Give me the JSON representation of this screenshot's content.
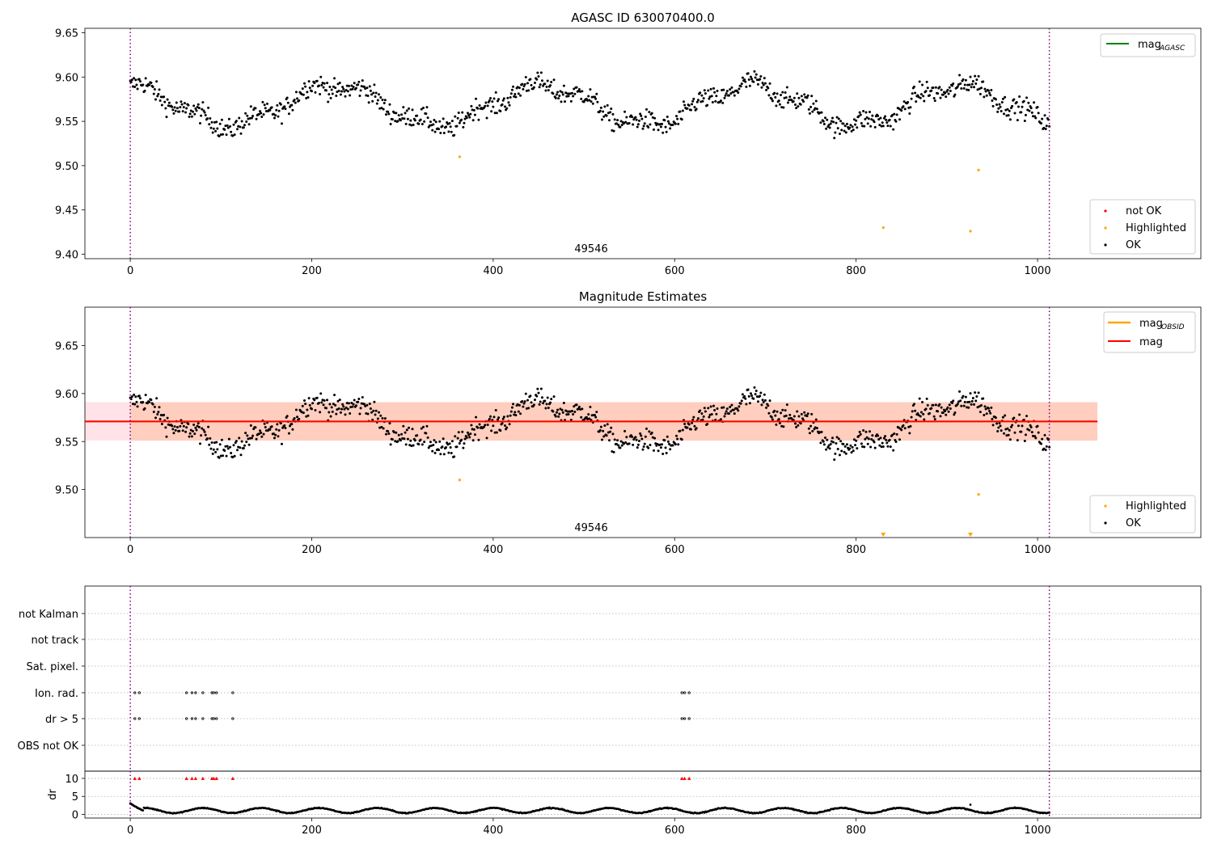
{
  "chart_data": [
    {
      "type": "scatter",
      "title": "AGASC ID 630070400.0",
      "xlim": [
        -50,
        1180
      ],
      "ylim": [
        9.395,
        9.655
      ],
      "x_ticks": [
        0,
        200,
        400,
        600,
        800,
        1000
      ],
      "y_ticks": [
        9.4,
        9.45,
        9.5,
        9.55,
        9.6,
        9.65
      ],
      "obsid_label": "49546",
      "vlines": [
        0,
        1013
      ],
      "series": [
        {
          "name": "OK",
          "color": "#000000",
          "n_points": 1014,
          "x_range": [
            0,
            1013
          ],
          "y_center": 9.57,
          "y_spread": 0.025,
          "example_points": [
            [
              0,
              9.59
            ],
            [
              150,
              9.56
            ],
            [
              240,
              9.6
            ],
            [
              350,
              9.53
            ],
            [
              460,
              9.59
            ],
            [
              560,
              9.55
            ],
            [
              740,
              9.6
            ],
            [
              850,
              9.55
            ],
            [
              930,
              9.6
            ],
            [
              1010,
              9.55
            ]
          ]
        },
        {
          "name": "Highlighted",
          "color": "#ffa500",
          "points": [
            [
              363,
              9.51
            ],
            [
              830,
              9.43
            ],
            [
              926,
              9.426
            ],
            [
              935,
              9.495
            ]
          ]
        },
        {
          "name": "not OK",
          "color": "#ff0000",
          "points": []
        }
      ],
      "legend_lines": [
        {
          "label": "mag",
          "sub": "AGASC",
          "color": "#008000"
        }
      ],
      "legend": "lower right"
    },
    {
      "type": "scatter",
      "title": "Magnitude Estimates",
      "xlim": [
        -50,
        1180
      ],
      "ylim": [
        9.45,
        9.69
      ],
      "x_ticks": [
        0,
        200,
        400,
        600,
        800,
        1000
      ],
      "y_ticks": [
        9.5,
        9.55,
        9.6,
        9.65
      ],
      "obsid_label": "49546",
      "vlines": [
        0,
        1013
      ],
      "series": [
        {
          "name": "OK",
          "color": "#000000"
        },
        {
          "name": "Highlighted",
          "color": "#ffa500",
          "points": [
            [
              363,
              9.51
            ],
            [
              935,
              9.495
            ]
          ],
          "below_axis_markers": [
            830,
            926
          ]
        }
      ],
      "legend_lines": [
        {
          "label": "mag",
          "sub": "OBSID",
          "color": "#ffa500"
        },
        {
          "label": "mag",
          "sub": "",
          "color": "#ff0000"
        }
      ],
      "mag_line": 9.571,
      "mag_band": [
        9.551,
        9.591
      ],
      "obsid_mag_line": 9.571,
      "obsid_band": [
        9.551,
        9.591
      ],
      "obsid_band_xrange": [
        0,
        1066
      ],
      "legend": "lower right"
    },
    {
      "type": "scatter",
      "title": "",
      "category_rows": [
        "not Kalman",
        "not track",
        "Sat. pixel.",
        "Ion. rad.",
        "dr > 5",
        "OBS not OK"
      ],
      "flagged_frames": [
        5,
        10,
        62,
        68,
        72,
        80,
        90,
        92,
        95,
        113,
        608,
        611,
        616
      ],
      "ion_rad_frames": [
        5,
        10,
        62,
        68,
        72,
        80,
        90,
        92,
        95,
        113,
        608,
        611,
        616
      ],
      "dr_gt5_frames": [
        5,
        10,
        62,
        68,
        72,
        80,
        90,
        92,
        95,
        113,
        608,
        611,
        616
      ],
      "dr": {
        "ylabel": "dr",
        "ylim": [
          -1,
          12
        ],
        "y_ticks": [
          0,
          5,
          10
        ],
        "n_points": 1014,
        "typical_range": [
          0.2,
          2.0
        ],
        "start_value": 3.0,
        "outlier": [
          926,
          2.7
        ]
      },
      "xlim": [
        -50,
        1180
      ],
      "x_ticks": [
        0,
        200,
        400,
        600,
        800,
        1000
      ],
      "vlines": [
        0,
        1013
      ]
    }
  ]
}
